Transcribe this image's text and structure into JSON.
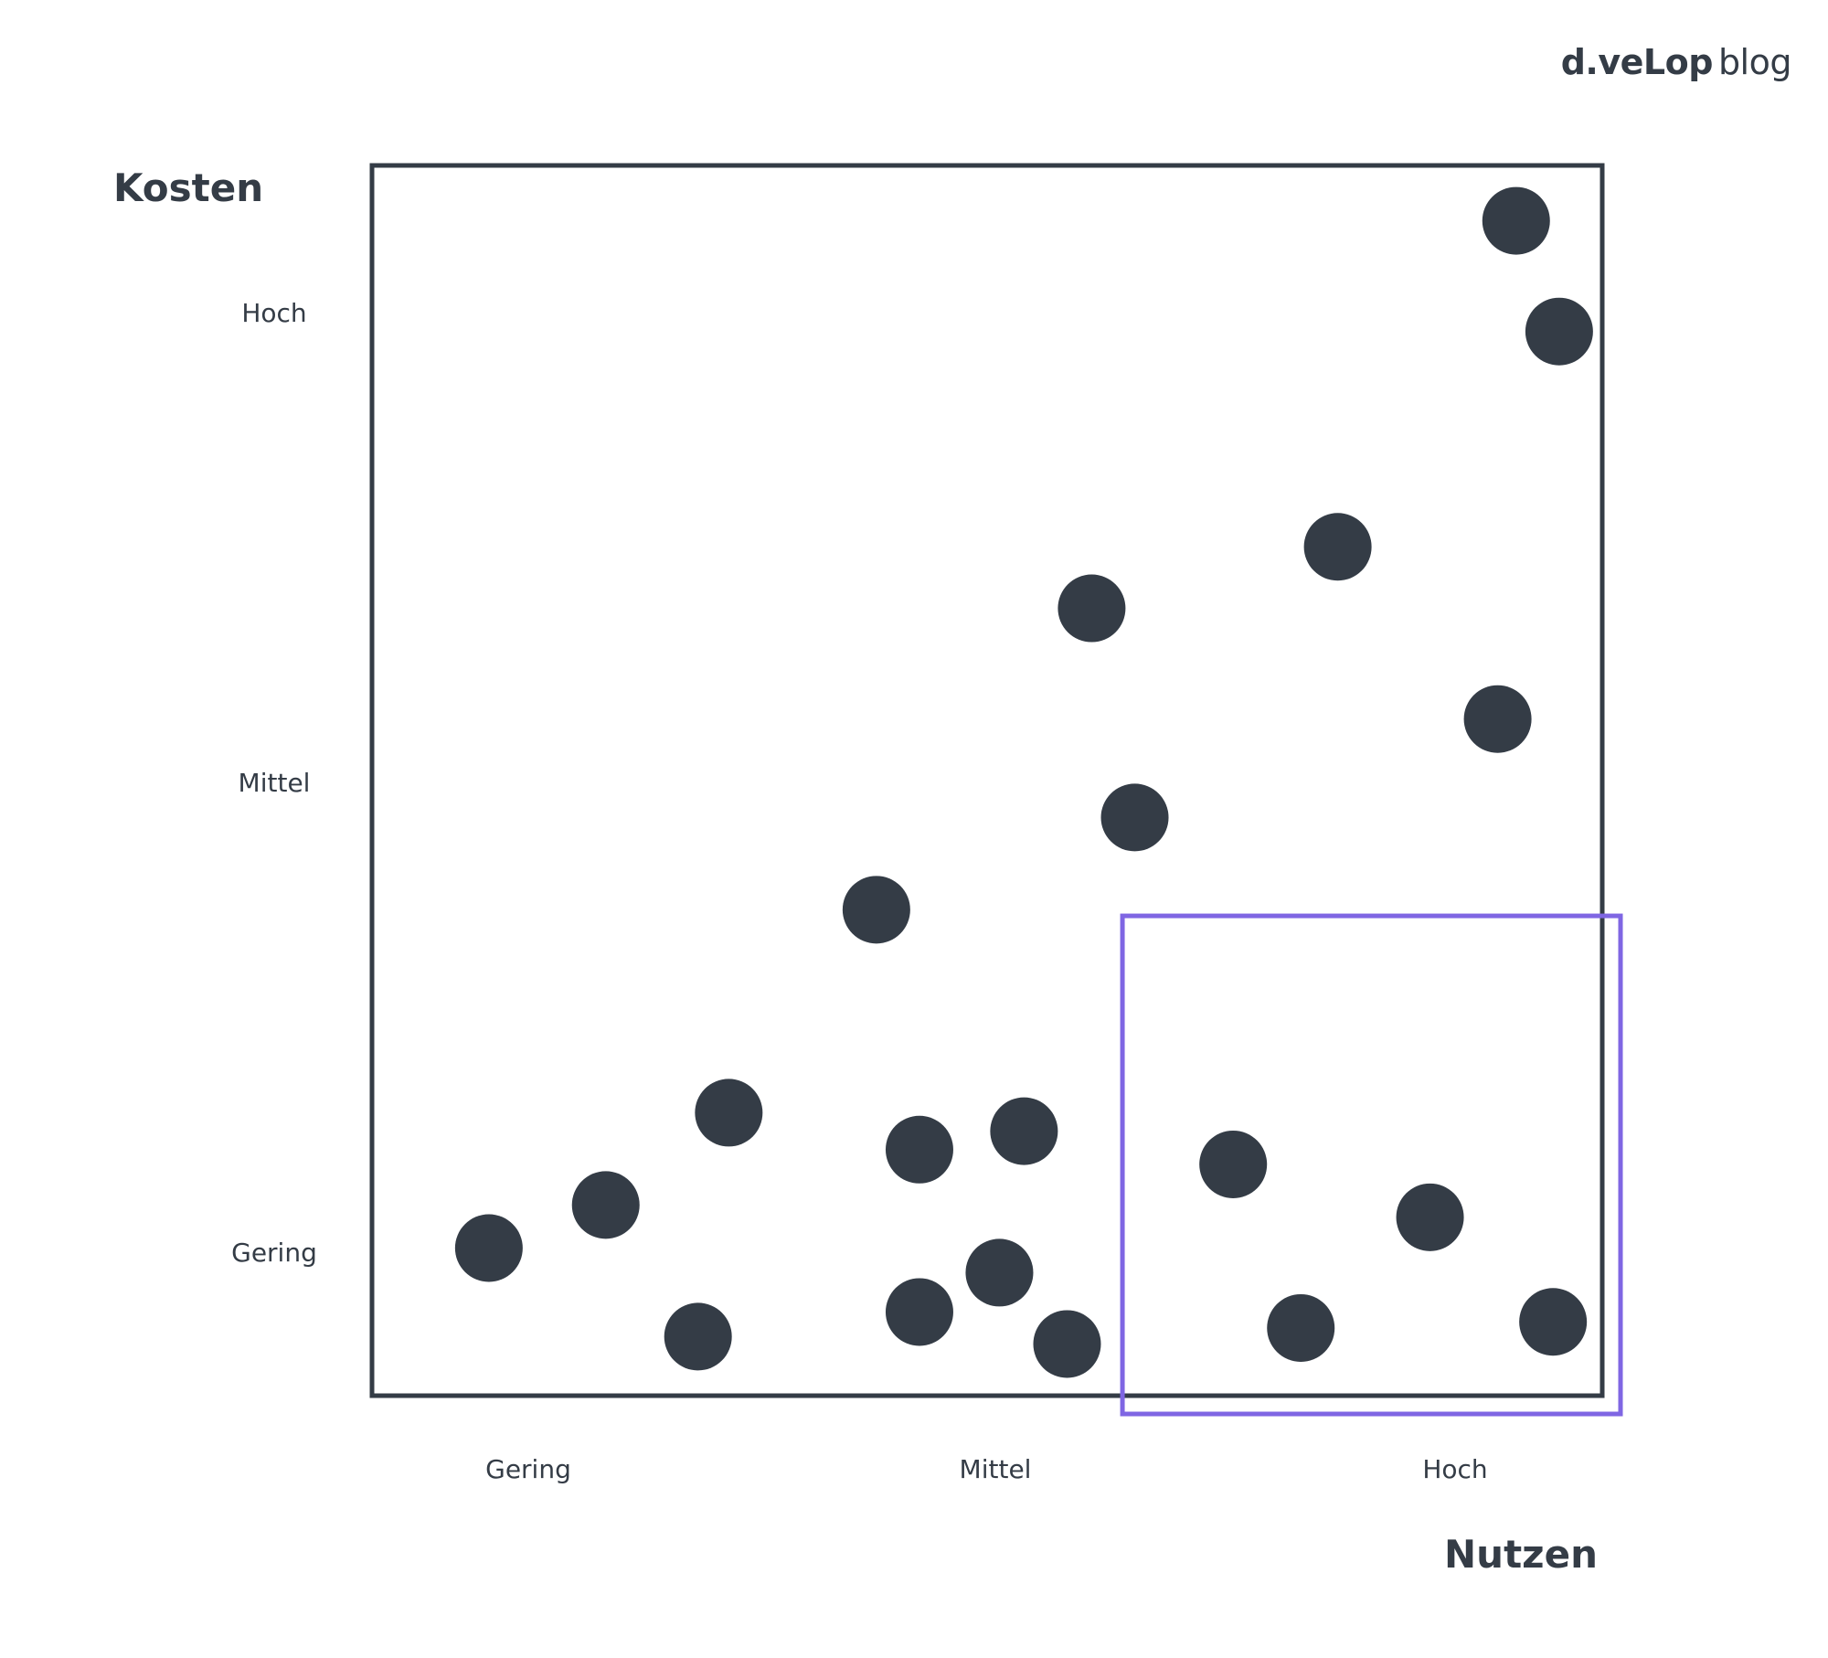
{
  "brand": {
    "bold": "d.veLop",
    "light": "blog"
  },
  "chart_data": {
    "type": "scatter",
    "title": "",
    "xlabel": "Nutzen",
    "ylabel": "Kosten",
    "x_ticks": [
      "Gering",
      "Mittel",
      "Hoch"
    ],
    "y_ticks": [
      "Gering",
      "Mittel",
      "Hoch"
    ],
    "xlim": [
      0,
      1
    ],
    "ylim": [
      0,
      1
    ],
    "grid": false,
    "colors": {
      "points": "#343c46",
      "frame": "#343c46",
      "highlight": "#7f66e3"
    },
    "highlight_region": {
      "x": [
        0.61,
        1.0
      ],
      "y": [
        0.0,
        0.39
      ]
    },
    "points": [
      {
        "x": 0.93,
        "y": 0.955
      },
      {
        "x": 0.965,
        "y": 0.865
      },
      {
        "x": 0.785,
        "y": 0.69
      },
      {
        "x": 0.585,
        "y": 0.64
      },
      {
        "x": 0.915,
        "y": 0.55
      },
      {
        "x": 0.62,
        "y": 0.47
      },
      {
        "x": 0.41,
        "y": 0.395
      },
      {
        "x": 0.29,
        "y": 0.23
      },
      {
        "x": 0.445,
        "y": 0.2
      },
      {
        "x": 0.53,
        "y": 0.215
      },
      {
        "x": 0.7,
        "y": 0.188
      },
      {
        "x": 0.19,
        "y": 0.155
      },
      {
        "x": 0.095,
        "y": 0.12
      },
      {
        "x": 0.86,
        "y": 0.145
      },
      {
        "x": 0.51,
        "y": 0.1
      },
      {
        "x": 0.445,
        "y": 0.068
      },
      {
        "x": 0.265,
        "y": 0.048
      },
      {
        "x": 0.565,
        "y": 0.042
      },
      {
        "x": 0.755,
        "y": 0.055
      },
      {
        "x": 0.96,
        "y": 0.06
      }
    ]
  }
}
